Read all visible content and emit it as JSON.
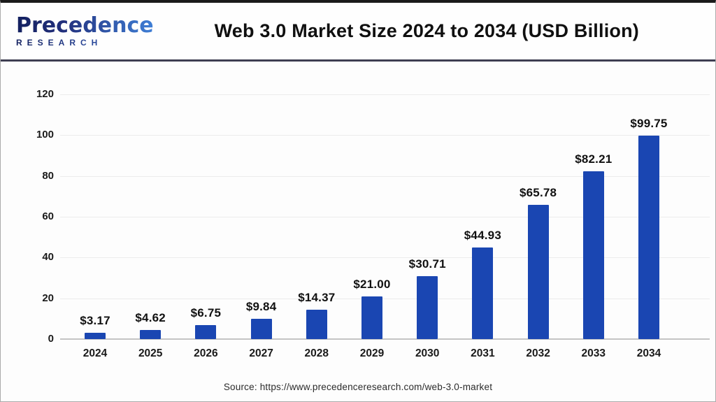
{
  "header": {
    "logo": {
      "line1": "Precedence",
      "line2": "RESEARCH"
    },
    "title": "Web 3.0 Market Size 2024 to 2034 (USD Billion)"
  },
  "footer": {
    "source": "Source: https://www.precedenceresearch.com/web-3.0-market"
  },
  "colors": {
    "bar": "#1a46b2",
    "separator": "#3e3e52",
    "grid": "#ececec",
    "axis_line": "#c4c4c4",
    "logo_dark": "#13205f",
    "logo_light": "#3f7fd6"
  },
  "chart_data": {
    "type": "bar",
    "title": "Web 3.0 Market Size 2024 to 2034 (USD Billion)",
    "unit": "USD Billion",
    "categories": [
      "2024",
      "2025",
      "2026",
      "2027",
      "2028",
      "2029",
      "2030",
      "2031",
      "2032",
      "2033",
      "2034"
    ],
    "values": [
      3.17,
      4.62,
      6.75,
      9.84,
      14.37,
      21.0,
      30.71,
      44.93,
      65.78,
      82.21,
      99.75
    ],
    "value_labels": [
      "$3.17",
      "$4.62",
      "$6.75",
      "$9.84",
      "$14.37",
      "$21.00",
      "$30.71",
      "$44.93",
      "$65.78",
      "$82.21",
      "$99.75"
    ],
    "xlabel": "",
    "ylabel": "",
    "ylim": [
      0,
      120
    ],
    "yticks": [
      0,
      20,
      40,
      60,
      80,
      100,
      120
    ],
    "grid": true,
    "legend": "none"
  }
}
